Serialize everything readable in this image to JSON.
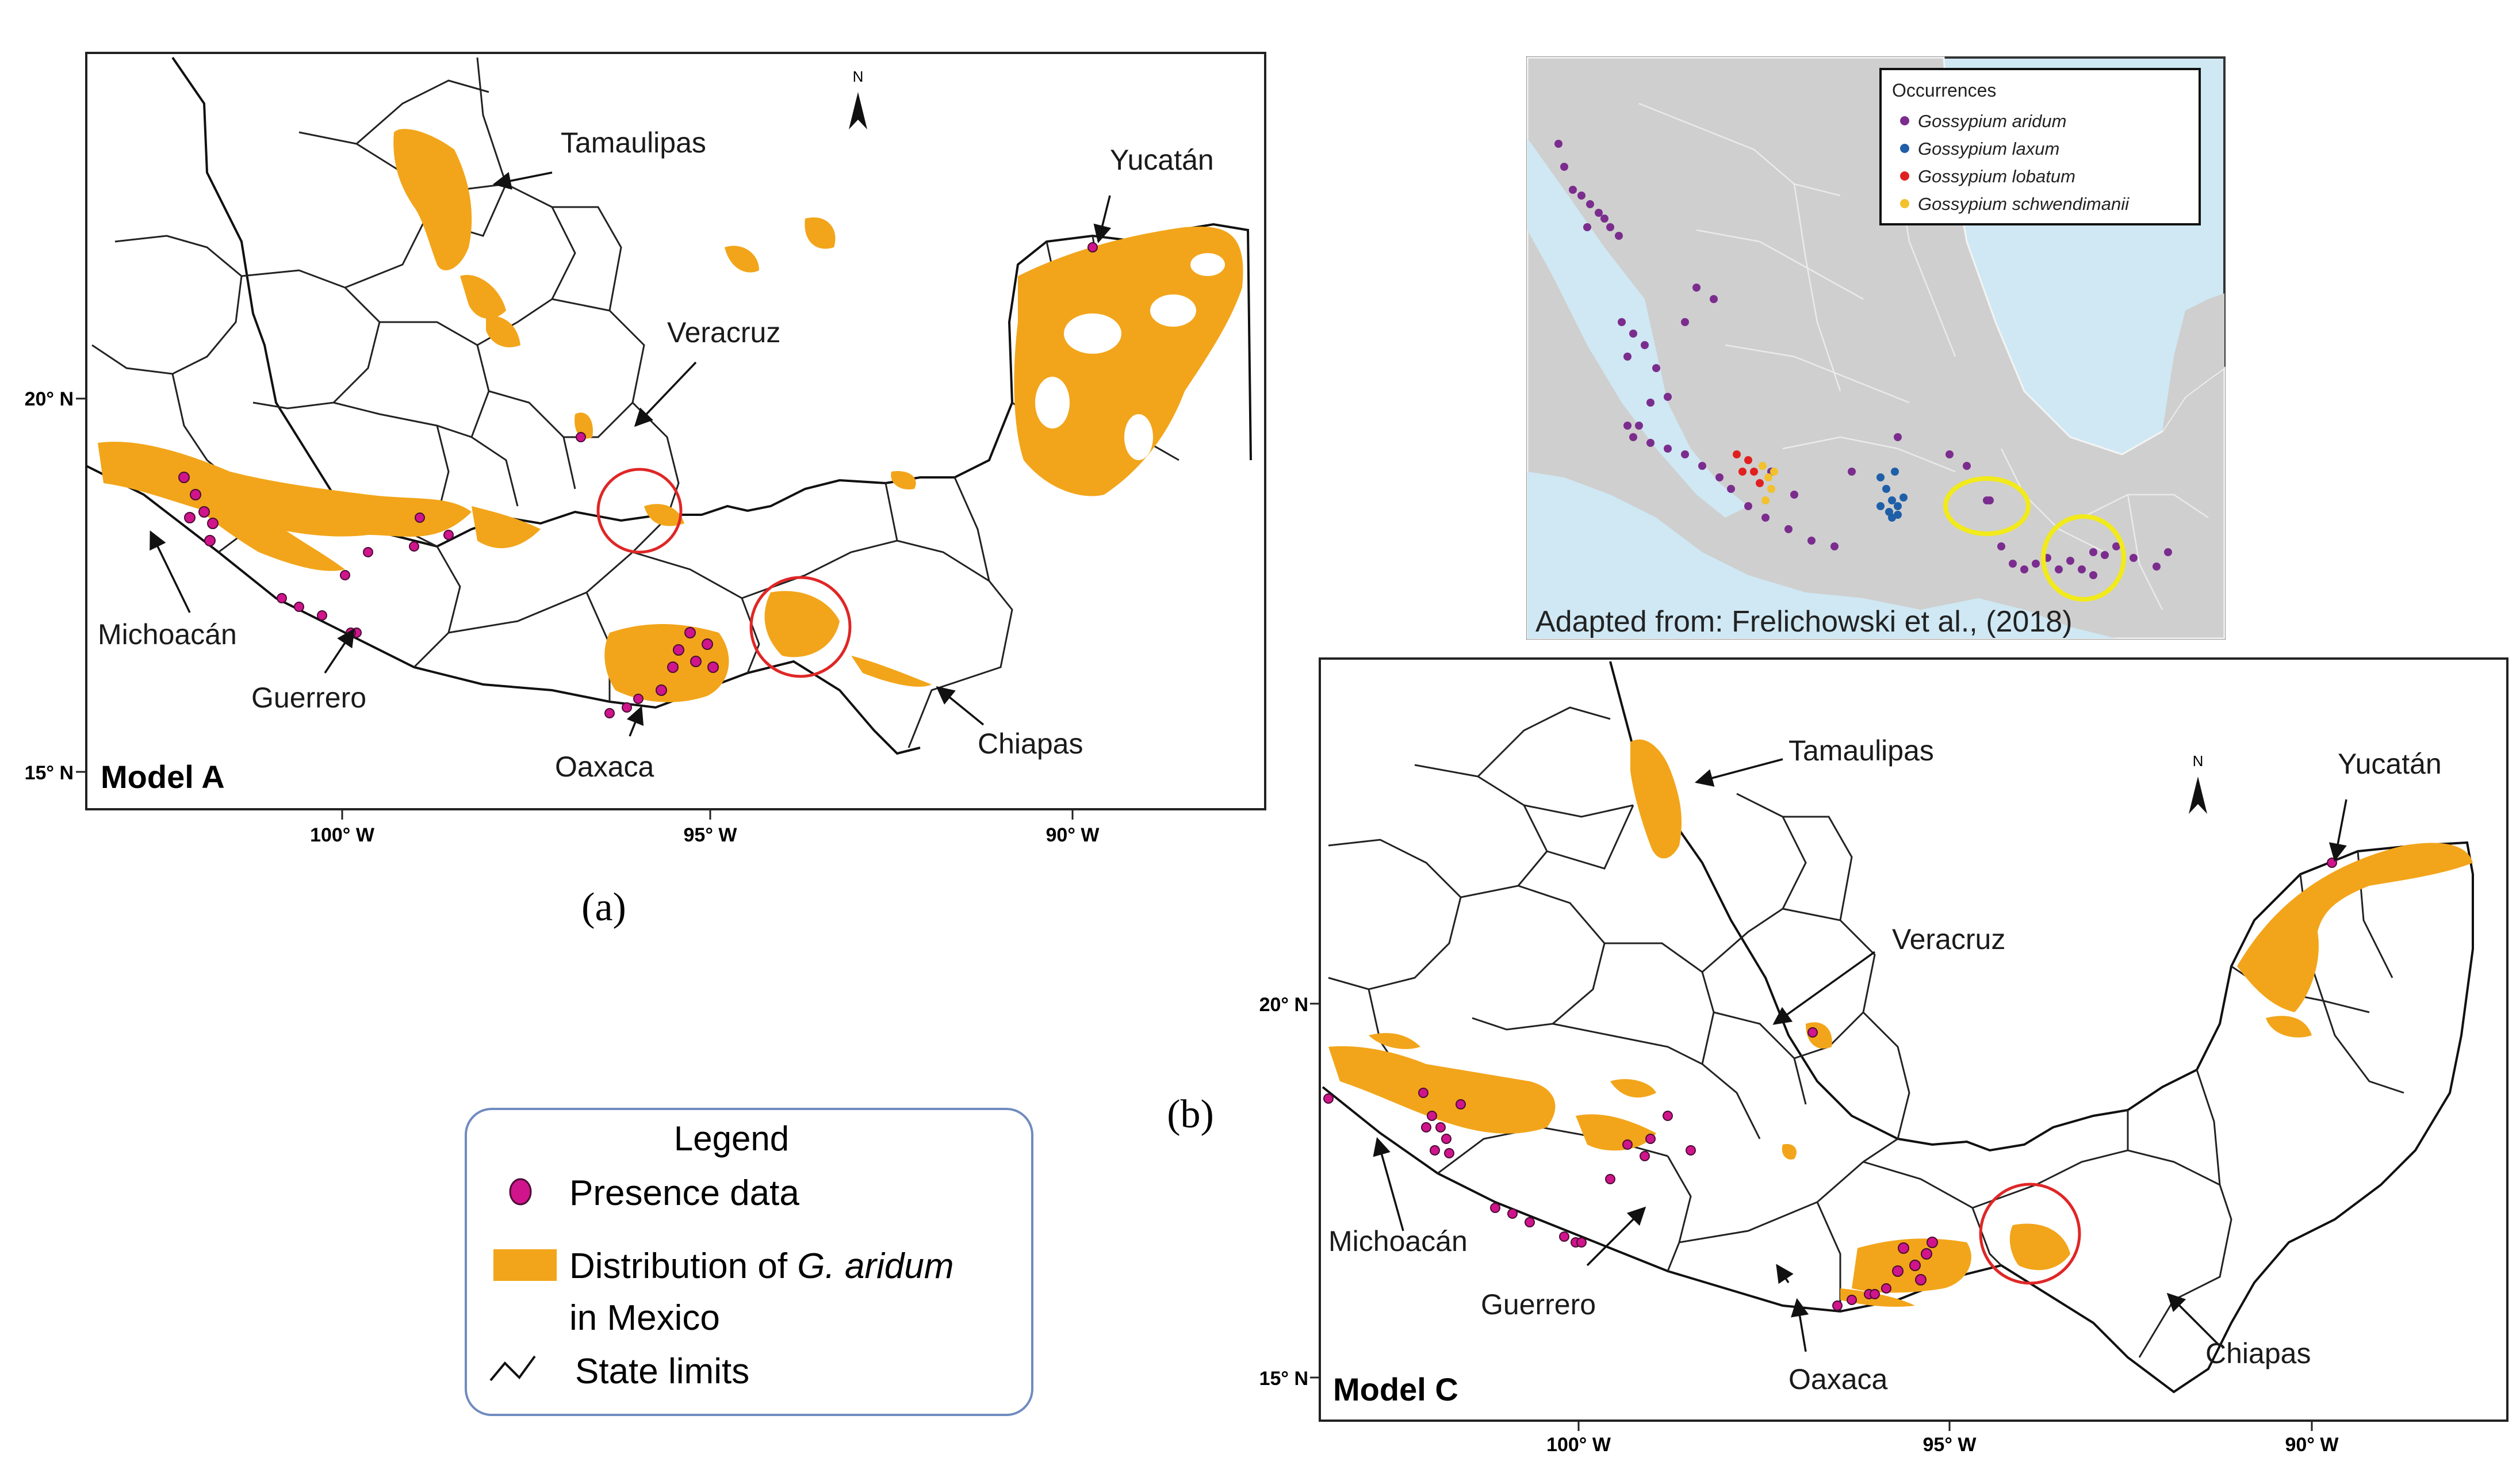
{
  "panel_a": {
    "model_label": "Model A",
    "caption": "(a)",
    "lat_ticks": [
      "20° N",
      "15° N"
    ],
    "lon_ticks": [
      "100° W",
      "95° W",
      "90° W"
    ],
    "north": "N",
    "states": {
      "tamaulipas": "Tamaulipas",
      "yucatan": "Yucatán",
      "veracruz": "Veracruz",
      "michoacan": "Michoacán",
      "guerrero": "Guerrero",
      "oaxaca": "Oaxaca",
      "chiapas": "Chiapas"
    }
  },
  "panel_b": {
    "caption": "(b)",
    "legend_title": "Occurrences",
    "species": [
      "Gossypium aridum",
      "Gossypium laxum",
      "Gossypium lobatum",
      "Gossypium schwendimanii"
    ],
    "colors": {
      "aridum": "#7b2d8e",
      "laxum": "#1f5fa8",
      "lobatum": "#e02020",
      "schwendimanii": "#f2c12e"
    },
    "source": "Adapted from: Frelichowski et al., (2018)"
  },
  "panel_c": {
    "model_label": "Model C",
    "lat_ticks": [
      "20° N",
      "15° N"
    ],
    "lon_ticks": [
      "100° W",
      "95° W",
      "90° W"
    ],
    "north": "N",
    "states": {
      "tamaulipas": "Tamaulipas",
      "yucatan": "Yucatán",
      "veracruz": "Veracruz",
      "michoacan": "Michoacán",
      "guerrero": "Guerrero",
      "oaxaca": "Oaxaca",
      "chiapas": "Chiapas"
    }
  },
  "legend": {
    "title": "Legend",
    "presence": "Presence  data",
    "distribution_prefix": "Distribution of ",
    "distribution_species": "G. aridum",
    "distribution_suffix": "in Mexico",
    "state_limits": "State limits"
  },
  "colors": {
    "distribution": "#f2a51a",
    "presence": "#d0148c",
    "circle": "#e02626",
    "highlight": "#f2ea1a",
    "ocean": "#cfe8f3",
    "land": "#cfcfcf"
  }
}
